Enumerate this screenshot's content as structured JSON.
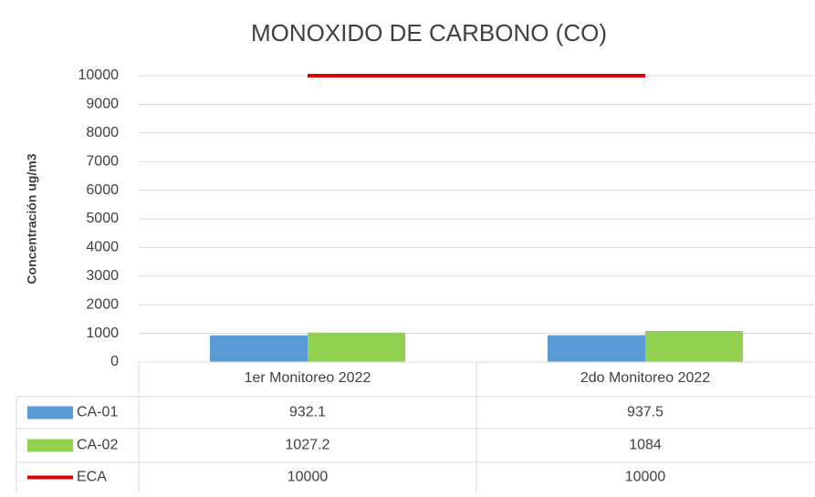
{
  "chart_data": {
    "type": "bar",
    "title": "MONOXIDO DE CARBONO (CO)",
    "y_label": "Concentración ug/m3",
    "categories": [
      "1er Monitoreo 2022",
      "2do Monitoreo 2022"
    ],
    "series": [
      {
        "name": "CA-01",
        "type": "bar",
        "color": "#5b9bd5",
        "values": [
          932.1,
          937.5
        ]
      },
      {
        "name": "CA-02",
        "type": "bar",
        "color": "#92d050",
        "values": [
          1027.2,
          1084
        ]
      },
      {
        "name": "ECA",
        "type": "line",
        "color": "#e00000",
        "values": [
          10000,
          10000
        ]
      }
    ],
    "ylim": [
      0,
      10000
    ],
    "yticks": [
      0,
      1000,
      2000,
      3000,
      4000,
      5000,
      6000,
      7000,
      8000,
      9000,
      10000
    ],
    "grid": true,
    "data_table": true
  }
}
